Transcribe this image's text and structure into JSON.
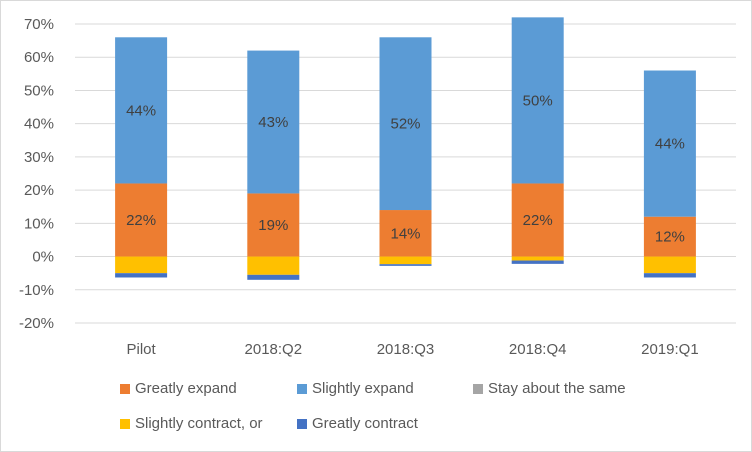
{
  "chart_data": {
    "type": "bar",
    "stacked": true,
    "categories": [
      "Pilot",
      "2018:Q2",
      "2018:Q3",
      "2018:Q4",
      "2019:Q1"
    ],
    "ylim": [
      -20,
      70
    ],
    "yticks": [
      "70%",
      "60%",
      "50%",
      "40%",
      "30%",
      "20%",
      "10%",
      "0%",
      "-10%",
      "-20%"
    ],
    "ytick_values": [
      70,
      60,
      50,
      40,
      30,
      20,
      10,
      0,
      -10,
      -20
    ],
    "grid": true,
    "legend_position": "bottom",
    "series": [
      {
        "name": "Greatly expand",
        "color": "#ED7D31",
        "values": [
          22,
          19,
          14,
          22,
          12
        ],
        "labels": [
          "22%",
          "19%",
          "14%",
          "22%",
          "12%"
        ]
      },
      {
        "name": "Slightly expand",
        "color": "#5B9BD5",
        "values": [
          44,
          43,
          52,
          50,
          44
        ],
        "labels": [
          "44%",
          "43%",
          "52%",
          "50%",
          "44%"
        ]
      },
      {
        "name": "Stay about the same",
        "color": "#A5A5A5",
        "values": [
          0,
          0,
          0,
          0,
          0
        ]
      },
      {
        "name": "Slightly contract, or",
        "color": "#FFC000",
        "values": [
          -5,
          -5.5,
          -2.3,
          -1.2,
          -5
        ]
      },
      {
        "name": "Greatly contract",
        "color": "#4472C4",
        "values": [
          -1.3,
          -1.5,
          -0.5,
          -1,
          -1.3
        ]
      }
    ]
  }
}
